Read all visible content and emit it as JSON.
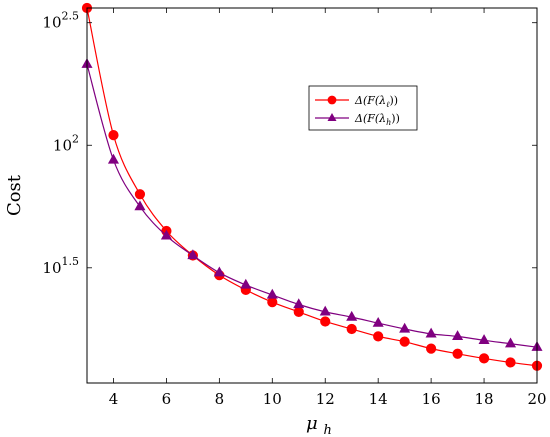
{
  "chart_data": {
    "type": "line",
    "xlabel": "μ",
    "xlabel_sub": "h",
    "ylabel": "Cost",
    "xlim": [
      3,
      20
    ],
    "ylim_log10": [
      1.03,
      2.56
    ],
    "y_scale": "log10",
    "grid": false,
    "legend_position": "top-right",
    "x_ticks": [
      4,
      6,
      8,
      10,
      12,
      14,
      16,
      18,
      20
    ],
    "y_ticks": [
      {
        "base": "10",
        "exp": "1.5",
        "log": 1.5
      },
      {
        "base": "10",
        "exp": "2",
        "log": 2
      },
      {
        "base": "10",
        "exp": "2.5",
        "log": 2.5
      }
    ],
    "x": [
      3,
      4,
      5,
      6,
      7,
      8,
      9,
      10,
      11,
      12,
      13,
      14,
      15,
      16,
      17,
      18,
      19,
      20
    ],
    "series": [
      {
        "name": "Δ(F(λℓ))",
        "color": "#ff0000",
        "marker": "circle",
        "values": [
          363,
          110,
          63.1,
          44.7,
          35.5,
          29.5,
          25.7,
          22.9,
          20.9,
          19.1,
          17.8,
          16.6,
          15.8,
          14.8,
          14.1,
          13.5,
          13.0,
          12.6
        ]
      },
      {
        "name": "Δ(F(λh))",
        "color": "#800080",
        "marker": "triangle",
        "values": [
          214,
          87.1,
          56.2,
          42.7,
          35.5,
          30.2,
          26.9,
          24.5,
          22.4,
          20.9,
          19.9,
          18.8,
          17.8,
          17.0,
          16.6,
          16.0,
          15.5,
          15.0
        ]
      }
    ],
    "legend_labels": [
      {
        "pre": "Δ(F(λ",
        "sub": "ℓ",
        "post": "))"
      },
      {
        "pre": "Δ(F(λ",
        "sub": "h",
        "post": "))"
      }
    ]
  }
}
